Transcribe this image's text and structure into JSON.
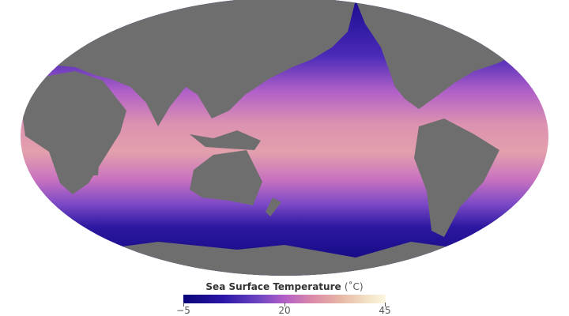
{
  "map": {
    "projection": "Robinson-like, Pacific-centered",
    "land_color": "#6e6e6e",
    "ocean_gradient": [
      "#0a0478",
      "#5a34c0",
      "#b35ec7",
      "#e0a0a8"
    ]
  },
  "legend": {
    "title": "Sea Surface Temperature",
    "unit": "(˚C)",
    "ticks": [
      "−5",
      "20",
      "45"
    ],
    "range": [
      -5,
      45
    ],
    "colors": [
      "#0a0478",
      "#2b17a8",
      "#7048c2",
      "#b35ec7",
      "#dc8aa8",
      "#e7b8a6",
      "#f4e6c8",
      "#fbf6e2"
    ]
  }
}
